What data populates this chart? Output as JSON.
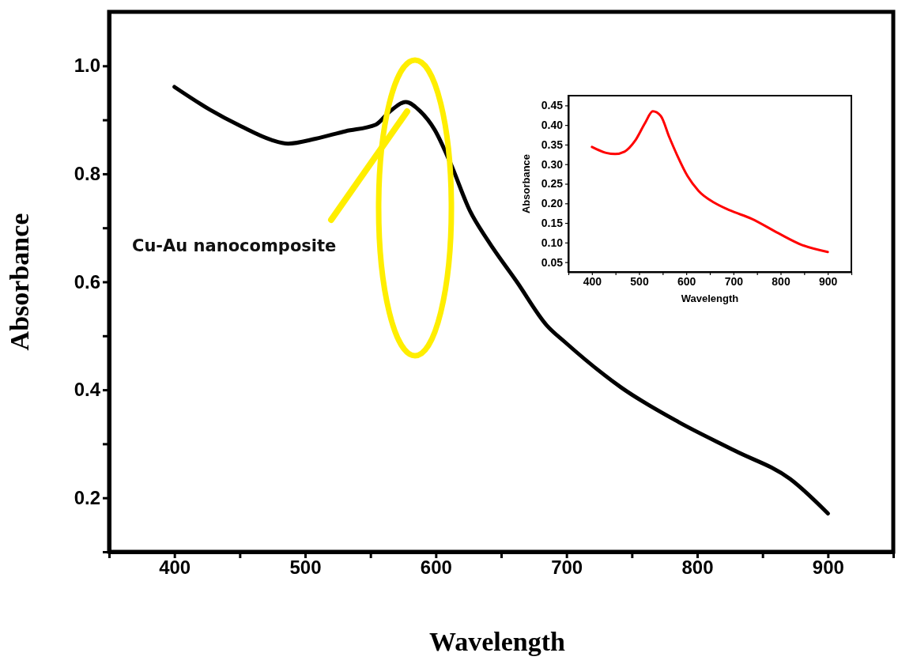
{
  "chart_data": [
    {
      "type": "line",
      "xlabel": "Wavelength",
      "ylabel": "Absorbance",
      "annotations": [
        "Cu-Au nanocomposite"
      ],
      "x": [
        400,
        427,
        451,
        474,
        487,
        508,
        531,
        554,
        565,
        577,
        588,
        599,
        611,
        626,
        640,
        662,
        685,
        699,
        742,
        786,
        829,
        871,
        900
      ],
      "series": [
        {
          "color": "#000000",
          "values": [
            0.961,
            0.919,
            0.888,
            0.863,
            0.856,
            0.865,
            0.879,
            0.891,
            0.916,
            0.933,
            0.916,
            0.882,
            0.821,
            0.732,
            0.676,
            0.6,
            0.519,
            0.488,
            0.404,
            0.34,
            0.287,
            0.235,
            0.171
          ]
        }
      ],
      "xlim": [
        350,
        950
      ],
      "ylim": [
        0.1,
        1.1
      ],
      "xticks": [
        {
          "value": 350,
          "label": null
        },
        400,
        {
          "value": 450,
          "label": null
        },
        500,
        {
          "value": 550,
          "label": null
        },
        600,
        {
          "value": 650,
          "label": null
        },
        700,
        {
          "value": 750,
          "label": null
        },
        800,
        {
          "value": 850,
          "label": null
        },
        900,
        {
          "value": 950,
          "label": null
        }
      ],
      "yticks": [
        {
          "value": 0.1,
          "label": null
        },
        {
          "value": 0.2,
          "label": "0.2"
        },
        {
          "value": 0.3,
          "label": null
        },
        {
          "value": 0.4,
          "label": "0.4"
        },
        {
          "value": 0.5,
          "label": null
        },
        {
          "value": 0.6,
          "label": "0.6"
        },
        {
          "value": 0.7,
          "label": null
        },
        {
          "value": 0.8,
          "label": "0.8"
        },
        {
          "value": 0.9,
          "label": null
        },
        {
          "value": 1.0,
          "label": "1.0"
        }
      ],
      "grid": false,
      "marker": "none",
      "line_style": "solid"
    },
    {
      "type": "line",
      "xlabel": "Wavelength",
      "ylabel": "Absorbance",
      "x": [
        400,
        430,
        449,
        469,
        491,
        513,
        529,
        546,
        564,
        581,
        603,
        626,
        659,
        693,
        738,
        795,
        845,
        900
      ],
      "series": [
        {
          "color": "#ff0000",
          "values": [
            0.344,
            0.329,
            0.326,
            0.332,
            0.359,
            0.406,
            0.435,
            0.423,
            0.369,
            0.322,
            0.269,
            0.232,
            0.202,
            0.182,
            0.161,
            0.124,
            0.094,
            0.076
          ]
        }
      ],
      "xlim": [
        350,
        950
      ],
      "ylim": [
        0.025,
        0.475
      ],
      "xticks": [
        {
          "value": 350,
          "label": null
        },
        400,
        {
          "value": 450,
          "label": null
        },
        500,
        {
          "value": 550,
          "label": null
        },
        600,
        {
          "value": 650,
          "label": null
        },
        700,
        {
          "value": 750,
          "label": null
        },
        800,
        {
          "value": 850,
          "label": null
        },
        900,
        {
          "value": 950,
          "label": null
        }
      ],
      "yticks": [
        {
          "value": 0.05,
          "label": "0.05"
        },
        {
          "value": 0.1,
          "label": "0.10"
        },
        {
          "value": 0.15,
          "label": "0.15"
        },
        {
          "value": 0.2,
          "label": "0.20"
        },
        {
          "value": 0.25,
          "label": "0.25"
        },
        {
          "value": 0.3,
          "label": "0.30"
        },
        {
          "value": 0.35,
          "label": "0.35"
        },
        {
          "value": 0.4,
          "label": "0.40"
        },
        {
          "value": 0.45,
          "label": "0.45"
        }
      ],
      "grid": false,
      "marker": "none",
      "line_style": "solid"
    }
  ]
}
